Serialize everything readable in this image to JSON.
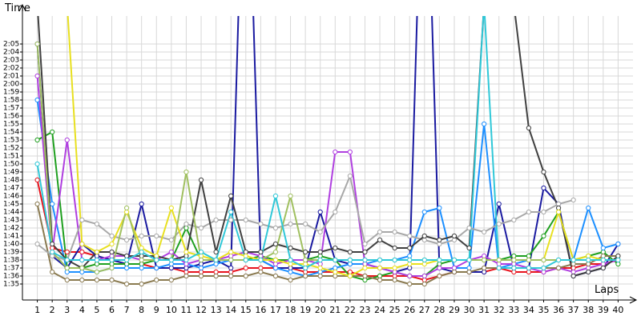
{
  "chart_data": {
    "type": "line",
    "y_label": "Time",
    "x_label": "Laps",
    "x": [
      1,
      2,
      3,
      4,
      5,
      6,
      7,
      8,
      9,
      10,
      11,
      12,
      13,
      14,
      15,
      16,
      17,
      18,
      19,
      20,
      21,
      22,
      23,
      24,
      25,
      26,
      27,
      28,
      29,
      30,
      31,
      32,
      33,
      34,
      35,
      36,
      37,
      38,
      39,
      40
    ],
    "xlim": [
      0,
      41
    ],
    "ylim": [
      93,
      128.5
    ],
    "yticks": [
      {
        "value": 95,
        "label": "1:35"
      },
      {
        "value": 96,
        "label": "1:36"
      },
      {
        "value": 97,
        "label": "1:37"
      },
      {
        "value": 98,
        "label": "1:38"
      },
      {
        "value": 99,
        "label": "1:39"
      },
      {
        "value": 100,
        "label": "1:40"
      },
      {
        "value": 101,
        "label": "1:41"
      },
      {
        "value": 102,
        "label": "1:42"
      },
      {
        "value": 103,
        "label": "1:43"
      },
      {
        "value": 104,
        "label": "1:44"
      },
      {
        "value": 105,
        "label": "1:45"
      },
      {
        "value": 106,
        "label": "1:46"
      },
      {
        "value": 107,
        "label": "1:47"
      },
      {
        "value": 108,
        "label": "1:48"
      },
      {
        "value": 109,
        "label": "1:49"
      },
      {
        "value": 110,
        "label": "1:50"
      },
      {
        "value": 111,
        "label": "1:51"
      },
      {
        "value": 112,
        "label": "1:52"
      },
      {
        "value": 113,
        "label": "1:53"
      },
      {
        "value": 114,
        "label": "1:54"
      },
      {
        "value": 115,
        "label": "1:55"
      },
      {
        "value": 116,
        "label": "1:56"
      },
      {
        "value": 117,
        "label": "1:57"
      },
      {
        "value": 118,
        "label": "1:58"
      },
      {
        "value": 119,
        "label": "1:59"
      },
      {
        "value": 120,
        "label": "2:00"
      },
      {
        "value": 121,
        "label": "2:01"
      },
      {
        "value": 122,
        "label": "2:02"
      },
      {
        "value": 123,
        "label": "2:03"
      },
      {
        "value": 124,
        "label": "2:04"
      },
      {
        "value": 125,
        "label": "2:05"
      }
    ],
    "grid": true,
    "series": [
      {
        "color": "#e8141e",
        "values": [
          108,
          99.5,
          99,
          99,
          98.5,
          98,
          97.5,
          97.5,
          97,
          97,
          96.5,
          96.5,
          96.5,
          96.5,
          97,
          97,
          97,
          97,
          96.5,
          96.5,
          96.5,
          96.5,
          96,
          96,
          96,
          96,
          95.5,
          96,
          96.5,
          96.5,
          96.5,
          97,
          96.5,
          96.5,
          96.5,
          97,
          97,
          97.5,
          97.5,
          98
        ]
      },
      {
        "color": "#1a1aa0",
        "values": [
          125,
          98.5,
          97,
          100,
          98.5,
          98,
          97.5,
          105,
          97,
          97,
          97,
          97.5,
          98,
          97,
          160,
          98,
          97,
          97,
          97,
          104,
          98,
          97.5,
          97.5,
          97,
          96.5,
          97,
          160,
          97,
          96.5,
          96.5,
          96.5,
          105,
          97,
          97,
          107,
          105,
          96,
          96.5,
          97,
          100
        ]
      },
      {
        "color": "#20a020",
        "values": [
          113,
          114,
          97,
          97,
          97.5,
          97.5,
          97.5,
          97.5,
          98,
          98,
          102,
          98,
          98,
          98,
          98,
          98.5,
          98,
          98,
          98,
          98.5,
          98,
          96,
          95.5,
          96,
          96.5,
          96,
          96,
          97.5,
          98,
          98,
          98,
          98,
          98.5,
          98.5,
          101,
          104,
          98,
          98.5,
          99,
          97.5
        ]
      },
      {
        "color": "#1e90ff",
        "values": [
          118,
          105,
          96.5,
          96.5,
          96.5,
          97,
          97,
          97,
          97,
          97.5,
          97.5,
          97,
          97.5,
          98,
          98,
          98,
          97,
          96.5,
          96,
          96.5,
          97,
          97.5,
          97.5,
          98,
          98,
          98.5,
          104,
          104.5,
          97,
          97,
          115,
          97,
          97.5,
          98,
          98,
          98,
          98,
          104.5,
          99.5,
          100
        ]
      },
      {
        "color": "#b040e0",
        "values": [
          121,
          99,
          113,
          98,
          98,
          98.5,
          98.5,
          98,
          98,
          99,
          97.5,
          98,
          98,
          98.5,
          99,
          98.5,
          97.5,
          98,
          98,
          97.5,
          111.5,
          111.5,
          97.5,
          97,
          96.5,
          96,
          96,
          97,
          97,
          98,
          98.5,
          97.5,
          97.5,
          97,
          96.5,
          97,
          96.5,
          97,
          97.5,
          98
        ]
      },
      {
        "color": "#8a7a50",
        "values": [
          105,
          96.5,
          95.5,
          95.5,
          95.5,
          95.5,
          95,
          95,
          95.5,
          95.5,
          96,
          96,
          96,
          96,
          96,
          96.5,
          96,
          95.5,
          96,
          96,
          96,
          96,
          96,
          95.5,
          95.5,
          95,
          95,
          96,
          96.5,
          96.5,
          97,
          97,
          97,
          97,
          97,
          97,
          97.5,
          97.5,
          98.5,
          98.5
        ]
      },
      {
        "color": "#a8a8a8",
        "values": [
          100,
          98.5,
          98,
          103,
          102.5,
          101,
          100.5,
          101,
          101,
          100.5,
          102.5,
          102,
          103,
          103,
          103,
          102.5,
          102,
          102.5,
          102.5,
          101.5,
          104,
          108.5,
          100,
          101.5,
          101.5,
          101,
          100.5,
          100,
          100.5,
          102,
          101.5,
          102.5,
          103,
          104,
          104,
          105,
          105.5,
          null,
          null,
          null
        ]
      },
      {
        "color": "#404040",
        "values": [
          130,
          100,
          98,
          97,
          99,
          99,
          98.5,
          98.5,
          98.5,
          98,
          98.5,
          108,
          99,
          106,
          99,
          99,
          100,
          99.5,
          99,
          99,
          99.5,
          99,
          99,
          100.5,
          99.5,
          99.5,
          101,
          100.5,
          101,
          99.5,
          130,
          130,
          130,
          114.5,
          109,
          104.5,
          96,
          96.5,
          97,
          98.5
        ]
      },
      {
        "color": "#e8e020",
        "values": [
          130,
          130,
          130,
          100,
          99,
          100,
          104,
          99.5,
          98.5,
          104.5,
          99,
          98.5,
          98,
          99,
          98.5,
          98,
          98,
          97.5,
          97.5,
          97,
          96.5,
          96,
          97,
          97,
          97,
          97.5,
          97.5,
          98,
          98,
          98,
          98,
          98,
          98,
          98,
          98,
          104,
          98,
          98.5,
          98,
          98
        ]
      },
      {
        "color": "#a0c060",
        "values": [
          125,
          99,
          97,
          97,
          96.5,
          97,
          104.5,
          98,
          98,
          98,
          109,
          98,
          98,
          98,
          98,
          98,
          99,
          106,
          98,
          98,
          98,
          98,
          98,
          98,
          98,
          98,
          98,
          98,
          98,
          98,
          98,
          98,
          98,
          98,
          98,
          98,
          98,
          98,
          98,
          98
        ]
      },
      {
        "color": "#30c8d8",
        "values": [
          110,
          99,
          98,
          98,
          98,
          98,
          98,
          99,
          98,
          98,
          98,
          99,
          98,
          104,
          98,
          98,
          106,
          98,
          97,
          98,
          98,
          98,
          98,
          98,
          98,
          98,
          98,
          98,
          98,
          98,
          130,
          97,
          97,
          97,
          97,
          98,
          98,
          98,
          98,
          98
        ]
      }
    ]
  }
}
